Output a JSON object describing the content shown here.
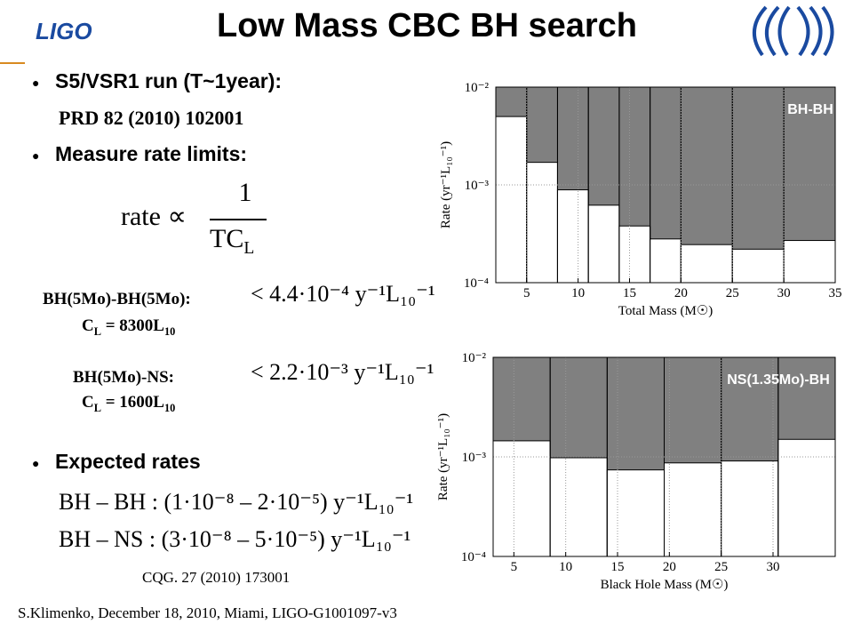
{
  "logo": "LIGO",
  "title": "Low Mass CBC BH search",
  "bullets": {
    "run": "S5/VSR1 run (T~1year):",
    "reference": "PRD 82 (2010) 102001",
    "measure": "Measure rate limits:",
    "expected": "Expected rates"
  },
  "formula": {
    "lhs": "rate ∝",
    "numerator": "1",
    "denominator": "TC",
    "subscript": "L"
  },
  "limits": [
    {
      "label": "BH(5Mo)-BH(5Mo):",
      "limit": "< 4.4·10⁻⁴ y⁻¹L₁₀⁻¹",
      "cl": "C",
      "cl_sub": "L",
      "cl_value": " = 8300L",
      "cl_value_sub": "10"
    },
    {
      "label": "BH(5Mo)-NS:",
      "limit": "< 2.2·10⁻³ y⁻¹L₁₀⁻¹",
      "cl": "C",
      "cl_sub": "L",
      "cl_value": " = 1600L",
      "cl_value_sub": "10"
    }
  ],
  "expected_rates": [
    "BH – BH : (1·10⁻⁸ – 2·10⁻⁵) y⁻¹L₁₀⁻¹",
    "BH – NS : (3·10⁻⁸ – 5·10⁻⁵) y⁻¹L₁₀⁻¹"
  ],
  "citation": "CQG. 27 (2010) 173001",
  "footer": "S.Klimenko, December 18, 2010, Miami, LIGO-G1001097-v3",
  "chart_data": [
    {
      "type": "histogram",
      "annotation": "BH-BH",
      "x_label": "Total Mass (M☉)",
      "y_label": "Rate (yr⁻¹L₁₀⁻¹)",
      "bins": [
        2,
        5,
        8,
        11,
        14,
        17,
        20,
        25,
        30,
        35
      ],
      "values": [
        0.005,
        0.0017,
        0.00089,
        0.00062,
        0.00038,
        0.00028,
        0.000245,
        0.00022,
        0.00027
      ],
      "color": "#ffffff",
      "xlim": [
        2,
        35
      ],
      "xticks": [
        5,
        10,
        15,
        20,
        25,
        30,
        35
      ],
      "ylim": [
        0.0001,
        0.01
      ],
      "log_y": true,
      "grid": true,
      "yticks": [
        {
          "value": 0.0001,
          "label": "10⁻⁴"
        },
        {
          "value": 0.001,
          "label": "10⁻³"
        },
        {
          "value": 0.01,
          "label": "10⁻²"
        }
      ]
    },
    {
      "type": "histogram",
      "annotation": "NS(1.35Mo)-BH",
      "x_label": "Black Hole Mass (M☉)",
      "y_label": "Rate (yr⁻¹L₁₀⁻¹)",
      "bins": [
        3,
        8.5,
        14,
        19.5,
        25,
        30.5,
        36
      ],
      "values": [
        0.00145,
        0.00098,
        0.00074,
        0.00087,
        0.00091,
        0.0015
      ],
      "color": "#ffffff",
      "xlim": [
        3,
        36
      ],
      "xticks": [
        5,
        10,
        15,
        20,
        25,
        30
      ],
      "ylim": [
        0.0001,
        0.01
      ],
      "log_y": true,
      "grid": true,
      "yticks": [
        {
          "value": 0.0001,
          "label": "10⁻⁴"
        },
        {
          "value": 0.001,
          "label": "10⁻³"
        },
        {
          "value": 0.01,
          "label": "10⁻²"
        }
      ]
    }
  ]
}
